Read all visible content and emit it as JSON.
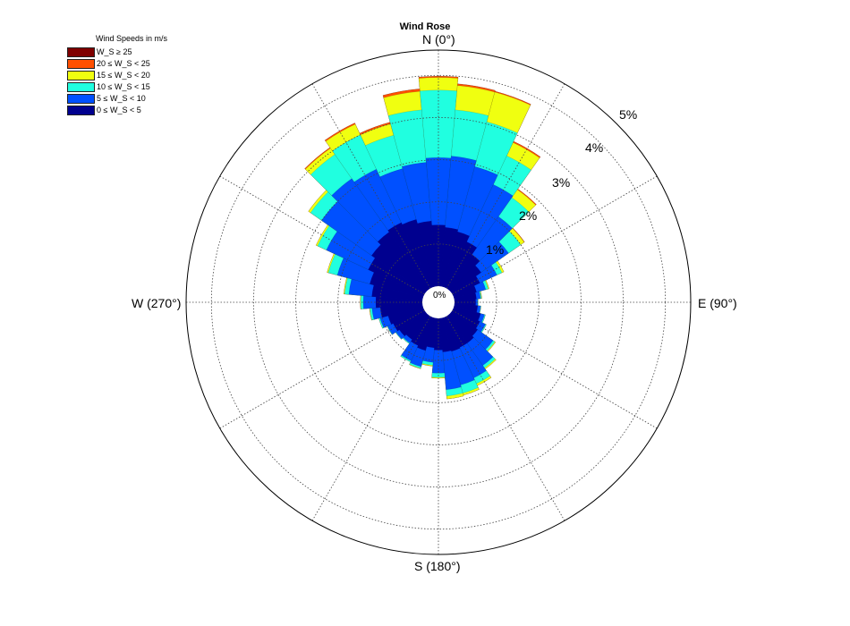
{
  "chart_data": {
    "type": "wind-rose",
    "title": "Wind Rose",
    "direction_labels": {
      "north": "N (0°)",
      "east": "E (90°)",
      "south": "S (180°)",
      "west": "W (270°)"
    },
    "radial_ticks": [
      "0%",
      "1%",
      "2%",
      "3%",
      "4%",
      "5%"
    ],
    "rmax": 5.6,
    "grid": true,
    "legend": {
      "title": "Wind Speeds in m/s",
      "placement": "top-left",
      "items": [
        {
          "label": "W_S ≥ 25",
          "color": "#800000"
        },
        {
          "label": "20 ≤ W_S < 25",
          "color": "#ff5000"
        },
        {
          "label": "15 ≤ W_S < 20",
          "color": "#f0ff10"
        },
        {
          "label": "10 ≤ W_S < 15",
          "color": "#20ffe0"
        },
        {
          "label": "5 ≤ W_S < 10",
          "color": "#0050ff"
        },
        {
          "label": "0 ≤ W_S < 5",
          "color": "#00008f"
        }
      ]
    },
    "bins": [
      "0 ≤ W_S < 5",
      "5 ≤ W_S < 10",
      "10 ≤ W_S < 15",
      "15 ≤ W_S < 20",
      "20 ≤ W_S < 25",
      "W_S ≥ 25"
    ],
    "bin_colors": [
      "#00008f",
      "#0050ff",
      "#20ffe0",
      "#f0ff10",
      "#ff5000",
      "#800000"
    ],
    "directions_deg": [
      0,
      10,
      20,
      30,
      40,
      50,
      60,
      70,
      80,
      90,
      100,
      110,
      120,
      130,
      140,
      150,
      160,
      170,
      180,
      190,
      200,
      210,
      220,
      230,
      240,
      250,
      260,
      270,
      280,
      290,
      300,
      310,
      320,
      330,
      340,
      350
    ],
    "cumulative_percent": [
      [
        1.45,
        3.05,
        4.65,
        4.95,
        4.98,
        4.98
      ],
      [
        1.4,
        3.1,
        4.2,
        4.78,
        4.82,
        4.82
      ],
      [
        1.35,
        2.95,
        4.05,
        4.78,
        4.8,
        4.8
      ],
      [
        1.2,
        2.7,
        3.45,
        3.8,
        3.83,
        3.83
      ],
      [
        1.0,
        2.1,
        2.65,
        2.88,
        2.9,
        2.9
      ],
      [
        0.85,
        1.65,
        2.0,
        2.1,
        2.11,
        2.11
      ],
      [
        0.7,
        1.15,
        1.28,
        1.33,
        1.33,
        1.33
      ],
      [
        0.55,
        0.78,
        0.84,
        0.86,
        0.86,
        0.86
      ],
      [
        0.52,
        0.62,
        0.64,
        0.65,
        0.65,
        0.65
      ],
      [
        0.5,
        0.55,
        0.56,
        0.56,
        0.56,
        0.56
      ],
      [
        0.55,
        0.62,
        0.63,
        0.63,
        0.63,
        0.63
      ],
      [
        0.65,
        0.75,
        0.77,
        0.77,
        0.77,
        0.77
      ],
      [
        0.7,
        0.85,
        0.87,
        0.87,
        0.87,
        0.87
      ],
      [
        0.75,
        1.2,
        1.25,
        1.27,
        1.27,
        1.27
      ],
      [
        0.8,
        1.45,
        1.52,
        1.55,
        1.55,
        1.55
      ],
      [
        0.8,
        1.6,
        1.75,
        1.8,
        1.8,
        1.8
      ],
      [
        0.82,
        1.65,
        1.85,
        1.9,
        1.9,
        1.9
      ],
      [
        0.8,
        1.7,
        1.85,
        1.92,
        1.92,
        1.92
      ],
      [
        0.75,
        1.3,
        1.4,
        1.42,
        1.42,
        1.42
      ],
      [
        0.7,
        1.05,
        1.12,
        1.14,
        1.14,
        1.14
      ],
      [
        0.8,
        1.2,
        1.24,
        1.25,
        1.25,
        1.25
      ],
      [
        0.75,
        1.15,
        1.18,
        1.18,
        1.18,
        1.18
      ],
      [
        0.7,
        0.8,
        0.82,
        0.82,
        0.82,
        0.82
      ],
      [
        0.75,
        0.85,
        0.86,
        0.86,
        0.86,
        0.86
      ],
      [
        0.8,
        0.95,
        0.96,
        0.96,
        0.96,
        0.96
      ],
      [
        0.85,
        1.05,
        1.08,
        1.08,
        1.08,
        1.08
      ],
      [
        1.0,
        1.2,
        1.25,
        1.26,
        1.26,
        1.26
      ],
      [
        1.1,
        1.4,
        1.46,
        1.47,
        1.47,
        1.47
      ],
      [
        1.2,
        1.75,
        1.85,
        1.87,
        1.87,
        1.87
      ],
      [
        1.3,
        2.1,
        2.32,
        2.35,
        2.35,
        2.35
      ],
      [
        1.45,
        2.55,
        2.78,
        2.82,
        2.82,
        2.82
      ],
      [
        1.55,
        3.0,
        3.32,
        3.38,
        3.38,
        3.38
      ],
      [
        1.65,
        3.2,
        3.9,
        4.08,
        4.1,
        4.1
      ],
      [
        1.7,
        3.1,
        4.0,
        4.28,
        4.31,
        4.31
      ],
      [
        1.65,
        2.9,
        3.72,
        4.0,
        4.04,
        4.04
      ],
      [
        1.55,
        2.95,
        4.2,
        4.64,
        4.7,
        4.7
      ]
    ]
  }
}
